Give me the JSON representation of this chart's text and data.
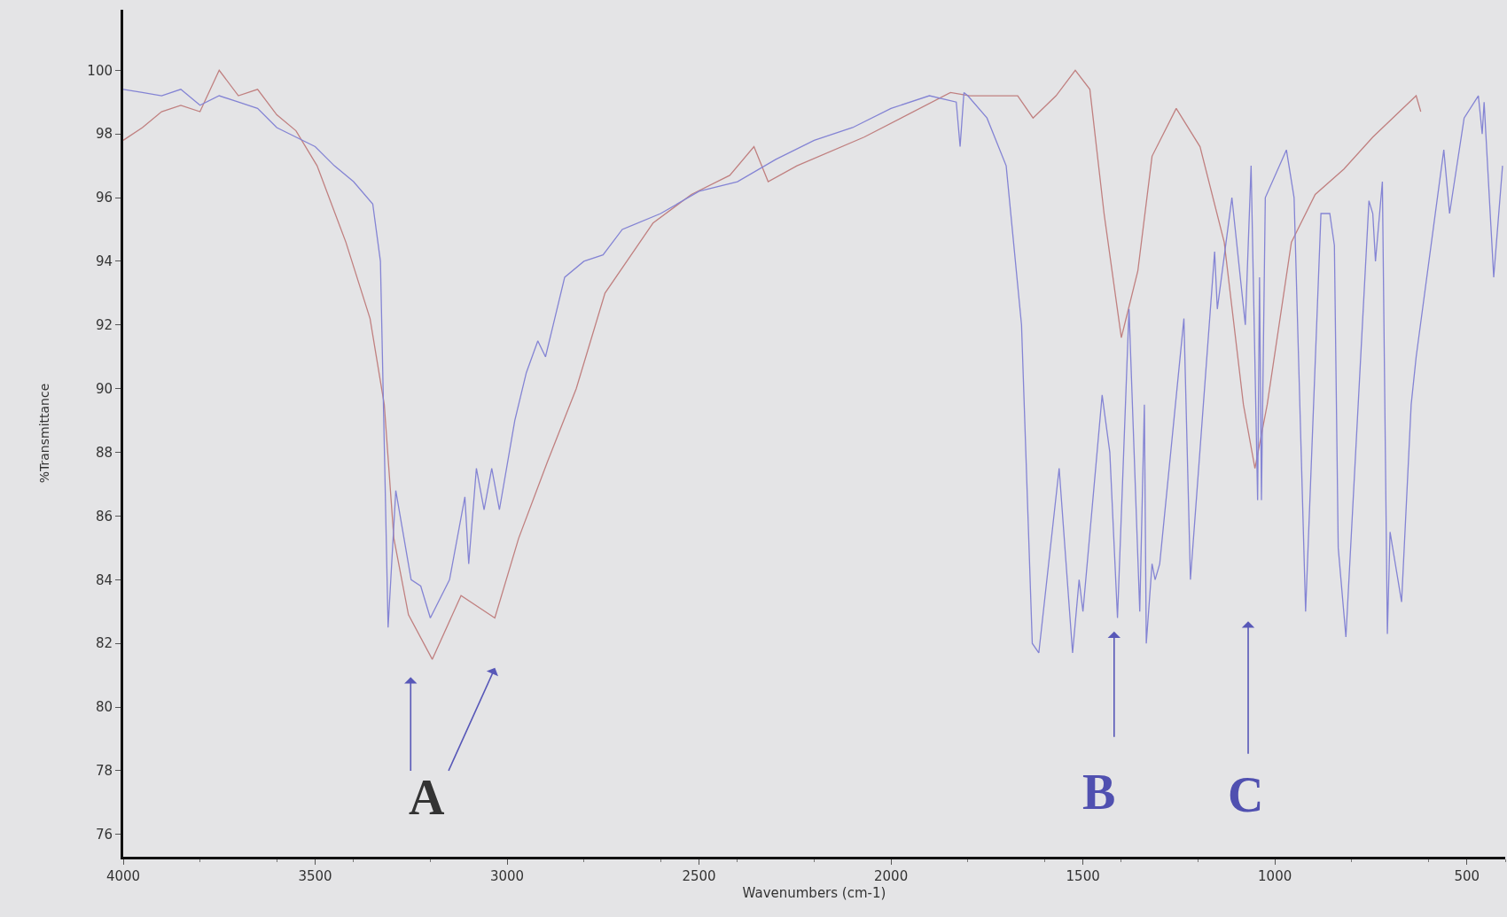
{
  "chart_data": {
    "type": "line",
    "xlabel": "Wavenumbers (cm-1)",
    "ylabel": "%Transmittance",
    "xlim": [
      4000,
      400
    ],
    "ylim": [
      75.3,
      101.9
    ],
    "xticks": [
      4000,
      3500,
      3000,
      2500,
      2000,
      1500,
      1000,
      500
    ],
    "yticks": [
      76,
      78,
      80,
      82,
      84,
      86,
      88,
      90,
      92,
      94,
      96,
      98,
      100
    ],
    "grid": false,
    "marker": "none",
    "line_style": "solid",
    "series": [
      {
        "color": "#c08080",
        "x": [
          4000,
          3950,
          3900,
          3850,
          3800,
          3750,
          3700,
          3650,
          3600,
          3550,
          3495,
          3420,
          3357,
          3320,
          3295,
          3257,
          3195,
          3120,
          3032,
          2970,
          2895,
          2820,
          2745,
          2620,
          2520,
          2420,
          2357,
          2320,
          2245,
          2070,
          1845,
          1795,
          1670,
          1630,
          1570,
          1520,
          1482,
          1445,
          1400,
          1357,
          1320,
          1257,
          1195,
          1132,
          1082,
          1052,
          1020,
          957,
          895,
          820,
          745,
          632,
          620
        ],
        "values": [
          97.8,
          98.2,
          98.7,
          98.9,
          98.7,
          100,
          99.2,
          99.4,
          98.6,
          98.1,
          97,
          94.6,
          92.2,
          89.5,
          85.3,
          82.9,
          81.5,
          83.5,
          82.8,
          85.3,
          87.7,
          90,
          93,
          95.2,
          96.1,
          96.7,
          97.6,
          96.5,
          97,
          97.9,
          99.3,
          99.2,
          99.2,
          98.5,
          99.2,
          100,
          99.4,
          95.5,
          91.6,
          93.7,
          97.3,
          98.8,
          97.6,
          94.6,
          89.5,
          87.5,
          89.5,
          94.6,
          96.1,
          96.9,
          97.9,
          99.2,
          98.7
        ]
      },
      {
        "color": "#8484d4",
        "x": [
          4000,
          3950,
          3900,
          3850,
          3800,
          3750,
          3700,
          3650,
          3600,
          3550,
          3500,
          3450,
          3400,
          3350,
          3330,
          3310,
          3290,
          3250,
          3225,
          3200,
          3150,
          3110,
          3100,
          3080,
          3060,
          3040,
          3020,
          2980,
          2950,
          2920,
          2900,
          2880,
          2850,
          2800,
          2750,
          2700,
          2600,
          2500,
          2400,
          2300,
          2200,
          2100,
          2000,
          1900,
          1830,
          1820,
          1810,
          1800,
          1750,
          1700,
          1660,
          1632,
          1615,
          1562,
          1527,
          1510,
          1500,
          1450,
          1430,
          1410,
          1380,
          1352,
          1340,
          1335,
          1320,
          1312,
          1300,
          1237,
          1220,
          1157,
          1150,
          1112,
          1077,
          1062,
          1045,
          1040,
          1035,
          1025,
          970,
          950,
          920,
          880,
          857,
          845,
          835,
          815,
          755,
          745,
          738,
          720,
          707,
          700,
          670,
          645,
          632,
          560,
          545,
          507,
          470,
          460,
          455,
          430,
          407
        ],
        "values": [
          99.4,
          99.3,
          99.2,
          99.4,
          98.9,
          99.2,
          99,
          98.8,
          98.2,
          97.9,
          97.6,
          97,
          96.5,
          95.8,
          94,
          82.5,
          86.8,
          84,
          83.8,
          82.8,
          84,
          86.6,
          84.5,
          87.5,
          86.2,
          87.5,
          86.2,
          89,
          90.5,
          91.5,
          91,
          92,
          93.5,
          94,
          94.2,
          95,
          95.5,
          96.2,
          96.5,
          97.2,
          97.8,
          98.2,
          98.8,
          99.2,
          99,
          97.6,
          99.3,
          99.2,
          98.5,
          97,
          92,
          82,
          81.7,
          87.5,
          81.7,
          84,
          83,
          89.8,
          88,
          82.8,
          92.5,
          83,
          89.5,
          82,
          84.5,
          84,
          84.5,
          92.2,
          84,
          94.3,
          92.5,
          96,
          92,
          97,
          86.5,
          93.5,
          86.5,
          96,
          97.5,
          96,
          83,
          95.5,
          95.5,
          94.5,
          85,
          82.2,
          95.9,
          95.5,
          94,
          96.5,
          82.3,
          85.5,
          83.3,
          89.5,
          91,
          97.5,
          95.5,
          98.5,
          99.2,
          98,
          99,
          93.5,
          97
        ]
      }
    ],
    "annotations": [
      "A",
      "B",
      "C"
    ]
  }
}
